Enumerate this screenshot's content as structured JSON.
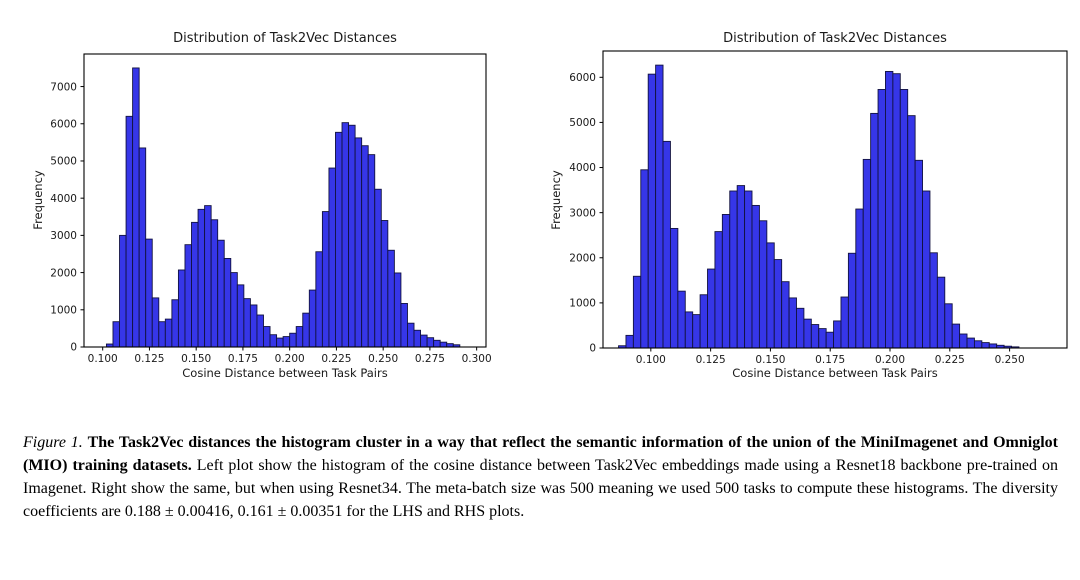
{
  "figure": {
    "caption": {
      "label": "Figure 1.",
      "bold_text": "The Task2Vec distances the histogram cluster in a way that reflect the semantic information of the union of the MiniImagenet and Omniglot (MIO) training datasets.",
      "body_text": "Left plot show the histogram of the cosine distance between Task2Vec embeddings made using a Resnet18 backbone pre-trained on Imagenet. Right show the same, but when using Resnet34. The meta-batch size was 500 meaning we used 500 tasks to compute these histograms. The diversity coefficients are 0.188 ± 0.00416, 0.161 ± 0.00351 for the LHS and RHS plots."
    }
  },
  "colors": {
    "background": "#ffffff",
    "bar_fill": "#3636e8",
    "bar_edge": "#121240",
    "axis": "#000000",
    "text": "#1a1a1a"
  },
  "chart_data": [
    {
      "type": "bar",
      "title": "Distribution of Task2Vec Distances",
      "xlabel": "Cosine Distance between Task Pairs",
      "ylabel": "Frequency",
      "grid": false,
      "legend": null,
      "bin_start": 0.102,
      "bin_width": 0.0035,
      "xlim": [
        0.09,
        0.305
      ],
      "ylim": [
        0,
        7875
      ],
      "xticks": [
        0.1,
        0.125,
        0.15,
        0.175,
        0.2,
        0.225,
        0.25,
        0.275,
        0.3
      ],
      "yticks": [
        0,
        1000,
        2000,
        3000,
        4000,
        5000,
        6000,
        7000
      ],
      "values": [
        80,
        680,
        3000,
        6200,
        7500,
        5350,
        2900,
        1320,
        680,
        750,
        1270,
        2070,
        2750,
        3350,
        3700,
        3800,
        3420,
        2870,
        2380,
        2000,
        1670,
        1300,
        1130,
        860,
        550,
        330,
        240,
        280,
        370,
        550,
        910,
        1530,
        2560,
        3640,
        4810,
        5770,
        6030,
        5960,
        5620,
        5410,
        5170,
        4240,
        3400,
        2600,
        1990,
        1170,
        640,
        450,
        320,
        250,
        180,
        130,
        90,
        60
      ]
    },
    {
      "type": "bar",
      "title": "Distribution of Task2Vec Distances",
      "xlabel": "Cosine Distance between Task Pairs",
      "ylabel": "Frequency",
      "grid": false,
      "legend": null,
      "bin_start": 0.0865,
      "bin_width": 0.0031,
      "xlim": [
        0.08,
        0.274
      ],
      "ylim": [
        0,
        6583
      ],
      "xticks": [
        0.1,
        0.125,
        0.15,
        0.175,
        0.2,
        0.225,
        0.25
      ],
      "yticks": [
        0,
        1000,
        2000,
        3000,
        4000,
        5000,
        6000
      ],
      "values": [
        50,
        280,
        1590,
        3950,
        6070,
        6270,
        4580,
        2650,
        1260,
        800,
        740,
        1180,
        1750,
        2580,
        2960,
        3480,
        3600,
        3480,
        3160,
        2820,
        2330,
        1960,
        1470,
        1110,
        880,
        640,
        520,
        430,
        350,
        600,
        1130,
        2100,
        3080,
        4180,
        5200,
        5730,
        6130,
        6080,
        5730,
        5150,
        4160,
        3480,
        2110,
        1570,
        980,
        530,
        310,
        220,
        160,
        120,
        90,
        60,
        40,
        25
      ]
    }
  ]
}
